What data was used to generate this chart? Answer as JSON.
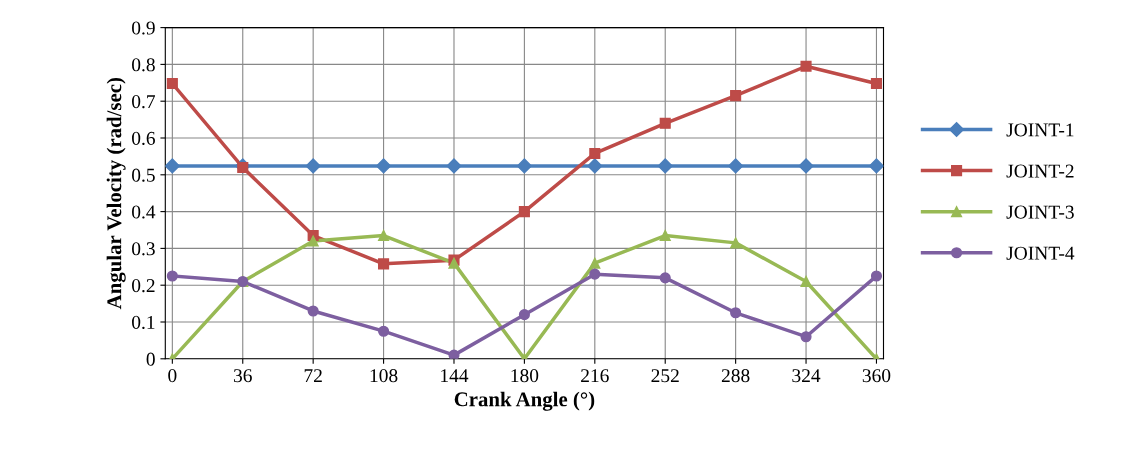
{
  "chart_data": {
    "type": "line",
    "xlabel": "Crank Angle (°)",
    "ylabel": "Angular Velocity (rad/sec)",
    "categories": [
      "0",
      "36",
      "72",
      "108",
      "144",
      "180",
      "216",
      "252",
      "288",
      "324",
      "360"
    ],
    "ylim": [
      0,
      0.9
    ],
    "yticks": [
      0,
      0.1,
      0.2,
      0.3,
      0.4,
      0.5,
      0.6,
      0.7,
      0.8,
      0.9
    ],
    "grid": true,
    "legend": "right",
    "line_style": "solid",
    "series": [
      {
        "name": "JOINT-1",
        "color": "#4a7ebb",
        "marker": "diamond",
        "values": [
          0.524,
          0.524,
          0.524,
          0.524,
          0.524,
          0.524,
          0.524,
          0.524,
          0.524,
          0.524,
          0.524
        ]
      },
      {
        "name": "JOINT-2",
        "color": "#be4b48",
        "marker": "square",
        "values": [
          0.748,
          0.52,
          0.335,
          0.258,
          0.268,
          0.4,
          0.558,
          0.64,
          0.715,
          0.795,
          0.748
        ]
      },
      {
        "name": "JOINT-3",
        "color": "#98b954",
        "marker": "triangle",
        "values": [
          0,
          0.21,
          0.32,
          0.335,
          0.26,
          0,
          0.26,
          0.335,
          0.315,
          0.21,
          0
        ]
      },
      {
        "name": "JOINT-4",
        "color": "#7d5fa0",
        "marker": "circle",
        "values": [
          0.225,
          0.21,
          0.13,
          0.075,
          0.01,
          0.12,
          0.23,
          0.22,
          0.125,
          0.06,
          0.225
        ]
      }
    ]
  }
}
